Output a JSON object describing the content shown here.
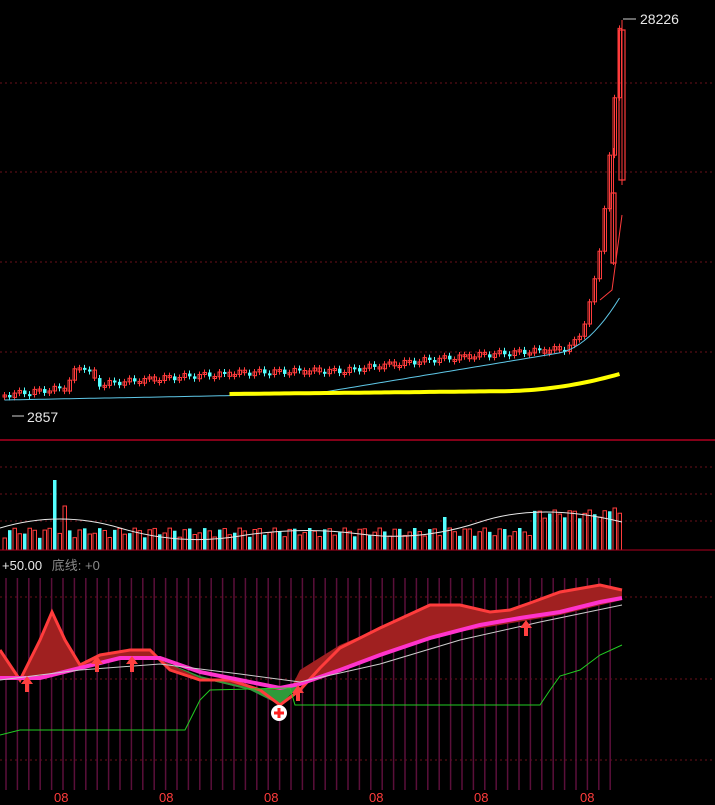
{
  "colors": {
    "background": "#000000",
    "up": "#ff3c3c",
    "down": "#54ffff",
    "ma_long": "#ffff00",
    "ma_mid": "#5fc8e8",
    "divider": "#b00020",
    "indicator_main": "#ff33cc",
    "indicator_base": "#22cc22",
    "fill_up": "#a02020",
    "fill_down": "#2f9a3a"
  },
  "price_panel": {
    "high_label": "28226",
    "low_label": "2857"
  },
  "indicator_panel": {
    "level_label": "+50.00",
    "baseline_label": "底线: +0"
  },
  "x_axis_labels": [
    "08",
    "08",
    "08",
    "08",
    "08",
    "08"
  ],
  "chart_data": {
    "type": "candlestick",
    "price_axis": {
      "min": 2857,
      "max": 28226
    },
    "candles_close_sample": [
      2857,
      3300,
      4100,
      3900,
      3800,
      3700,
      3500,
      3900,
      4200,
      5300,
      5600,
      6200,
      6500,
      6800,
      7500,
      9000,
      11000,
      14000,
      20000,
      26000
    ],
    "volume_relative": [
      0.15,
      0.3,
      0.9,
      0.5,
      0.4,
      0.3,
      0.25,
      0.3,
      0.35,
      0.4,
      0.35,
      0.3,
      0.28,
      0.5,
      0.55,
      0.45,
      0.35,
      0.4,
      0.5,
      0.9
    ],
    "indicator_markers": {
      "up_arrows": 6,
      "cross_markers": 1
    }
  }
}
